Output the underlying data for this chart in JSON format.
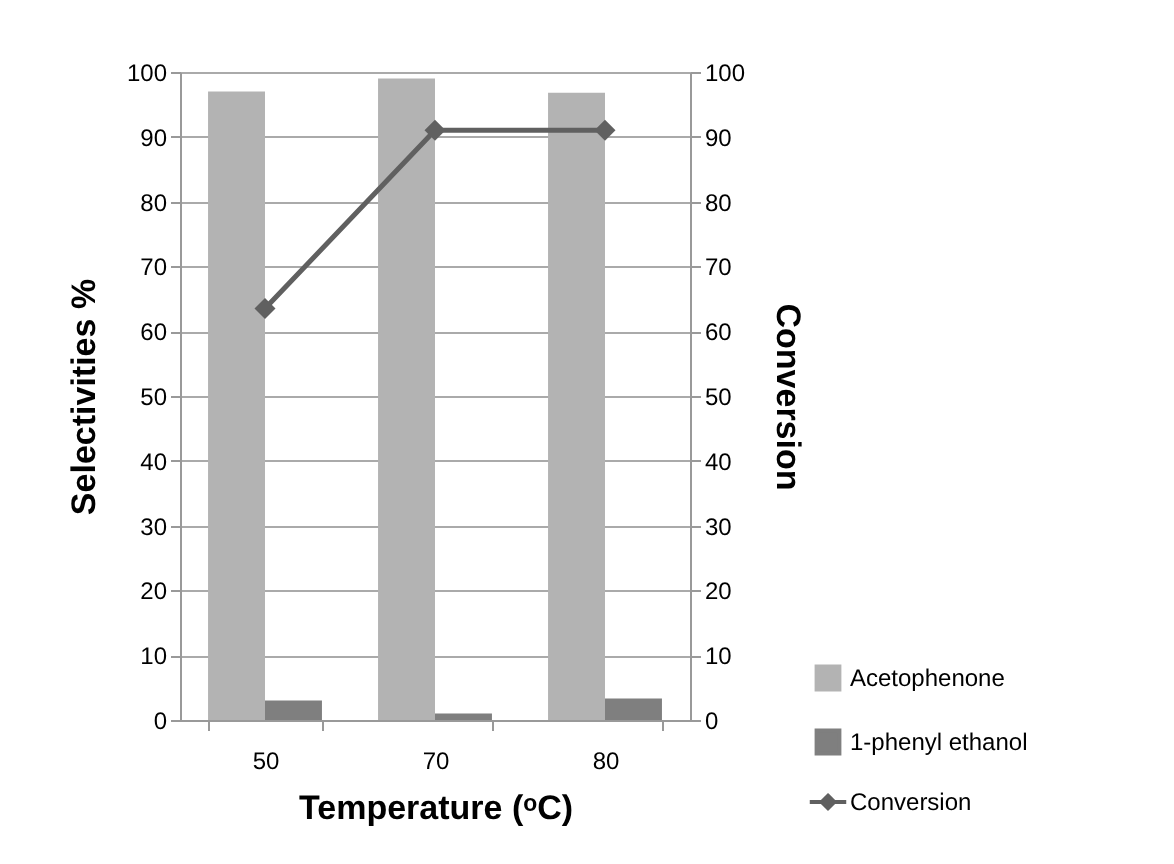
{
  "chart_data": {
    "type": "bar",
    "xlabel": "Temperature (ᵒC)",
    "ylabel": "Selectivities %",
    "y2label": "Conversion",
    "categories": [
      "50",
      "70",
      "80"
    ],
    "series": [
      {
        "name": "Acetophenone",
        "color": "#b3b3b3",
        "values": [
          97,
          99,
          96.8
        ]
      },
      {
        "name": "1-phenyl ethanol",
        "color": "#7f7f7f",
        "values": [
          3,
          1,
          3.3
        ]
      },
      {
        "name": "Conversion",
        "type": "line",
        "axis": "y2",
        "color": "#606060",
        "values": [
          63.5,
          91,
          91
        ]
      }
    ],
    "ylim": [
      0,
      100
    ],
    "yticks": [
      0,
      10,
      20,
      30,
      40,
      50,
      60,
      70,
      80,
      90,
      100
    ],
    "y2lim": [
      0,
      100
    ],
    "y2ticks": [
      0,
      10,
      20,
      30,
      40,
      50,
      60,
      70,
      80,
      90,
      100
    ],
    "grid": "y",
    "legend": "right",
    "marker": "diamond",
    "line_style": "solid"
  }
}
